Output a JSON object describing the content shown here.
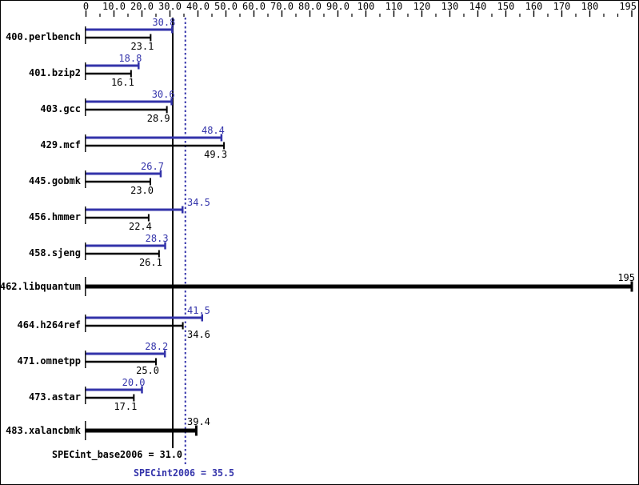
{
  "chart_data": {
    "type": "bar",
    "orientation": "horizontal",
    "title": "",
    "colors": {
      "peak": "#3333aa",
      "base": "#000000",
      "background": "#ffffff",
      "border": "#000000"
    },
    "x_axis": {
      "min": 0,
      "max": 195,
      "major_step": 10,
      "minor_step": 5,
      "position": "top",
      "ticks": [
        {
          "value": 0,
          "label": "0"
        },
        {
          "value": 10,
          "label": "10.0"
        },
        {
          "value": 20,
          "label": "20.0"
        },
        {
          "value": 30,
          "label": "30.0"
        },
        {
          "value": 40,
          "label": "40.0"
        },
        {
          "value": 50,
          "label": "50.0"
        },
        {
          "value": 60,
          "label": "60.0"
        },
        {
          "value": 70,
          "label": "70.0"
        },
        {
          "value": 80,
          "label": "80.0"
        },
        {
          "value": 90,
          "label": "90.0"
        },
        {
          "value": 100,
          "label": "100"
        },
        {
          "value": 110,
          "label": "110"
        },
        {
          "value": 120,
          "label": "120"
        },
        {
          "value": 130,
          "label": "130"
        },
        {
          "value": 140,
          "label": "140"
        },
        {
          "value": 150,
          "label": "150"
        },
        {
          "value": 160,
          "label": "160"
        },
        {
          "value": 170,
          "label": "170"
        },
        {
          "value": 180,
          "label": "180"
        },
        {
          "value": 195,
          "label": "195"
        }
      ]
    },
    "series_legend": {
      "peak_color_meaning": "SPECint2006 (peak) result, blue bars",
      "base_color_meaning": "SPECint_base2006 (base) result, black bars"
    },
    "benchmarks": [
      {
        "name": "400.perlbench",
        "peak": "30.8",
        "base": "23.1"
      },
      {
        "name": "401.bzip2",
        "peak": "18.8",
        "base": "16.1"
      },
      {
        "name": "403.gcc",
        "peak": "30.6",
        "base": "28.9"
      },
      {
        "name": "429.mcf",
        "peak": "48.4",
        "base": "49.3"
      },
      {
        "name": "445.gobmk",
        "peak": "26.7",
        "base": "23.0"
      },
      {
        "name": "456.hmmer",
        "peak": "34.5",
        "base": "22.4"
      },
      {
        "name": "458.sjeng",
        "peak": "28.3",
        "base": "26.1"
      },
      {
        "name": "462.libquantum",
        "value": "195"
      },
      {
        "name": "464.h264ref",
        "peak": "41.5",
        "base": "34.6"
      },
      {
        "name": "471.omnetpp",
        "peak": "28.2",
        "base": "25.0"
      },
      {
        "name": "473.astar",
        "peak": "20.0",
        "base": "17.1"
      },
      {
        "name": "483.xalancbmk",
        "value": "39.4"
      }
    ],
    "summary": {
      "base_text": "SPECint_base2006 = 31.0",
      "base_value": 31.0,
      "peak_text": "SPECint2006 = 35.5",
      "peak_value": 35.5
    }
  }
}
